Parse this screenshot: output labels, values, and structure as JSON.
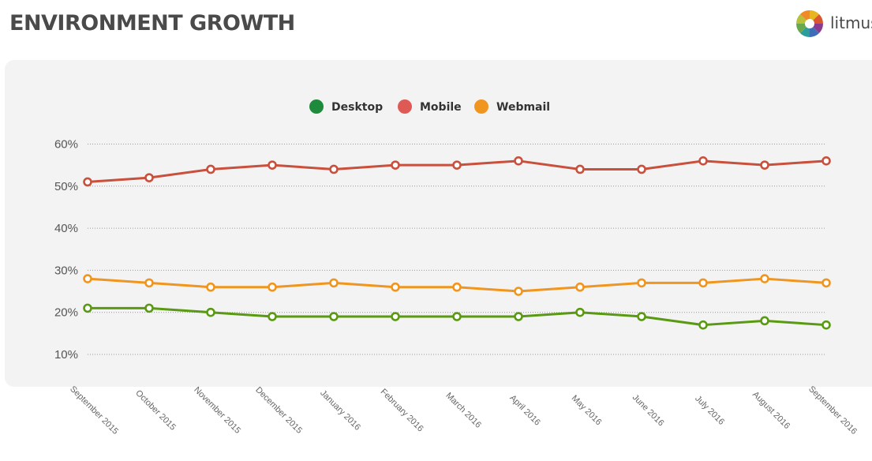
{
  "header": {
    "title": "ENVIRONMENT GROWTH",
    "logo_text": "litmus",
    "logo_colors": [
      "#e8b420",
      "#d9562f",
      "#8a3b8f",
      "#3d6db5",
      "#2b9e9b",
      "#6aa84f",
      "#b5c23a",
      "#f08a24"
    ]
  },
  "chart_data": {
    "type": "line",
    "title": "ENVIRONMENT GROWTH",
    "xlabel": "",
    "ylabel": "",
    "categories": [
      "September 2015",
      "October 2015",
      "November 2015",
      "December 2015",
      "January 2016",
      "February 2016",
      "March 2016",
      "April 2016",
      "May 2016",
      "June 2016",
      "July 2016",
      "August 2016",
      "September 2016"
    ],
    "ylim": [
      10,
      60
    ],
    "yticks": [
      "10%",
      "20%",
      "30%",
      "40%",
      "50%",
      "60%"
    ],
    "grid": true,
    "legend_position": "top-center",
    "series": [
      {
        "name": "Desktop",
        "legend_color": "#1e8a3c",
        "color": "#5a9a12",
        "values": [
          21,
          21,
          20,
          19,
          19,
          19,
          19,
          19,
          20,
          19,
          17,
          18,
          17
        ]
      },
      {
        "name": "Mobile",
        "legend_color": "#e05a55",
        "color": "#c8503c",
        "values": [
          51,
          52,
          54,
          55,
          54,
          55,
          55,
          56,
          54,
          54,
          56,
          55,
          56
        ]
      },
      {
        "name": "Webmail",
        "legend_color": "#f0951e",
        "color": "#f0951e",
        "values": [
          28,
          27,
          26,
          26,
          27,
          26,
          26,
          25,
          26,
          27,
          27,
          28,
          27
        ]
      }
    ]
  }
}
